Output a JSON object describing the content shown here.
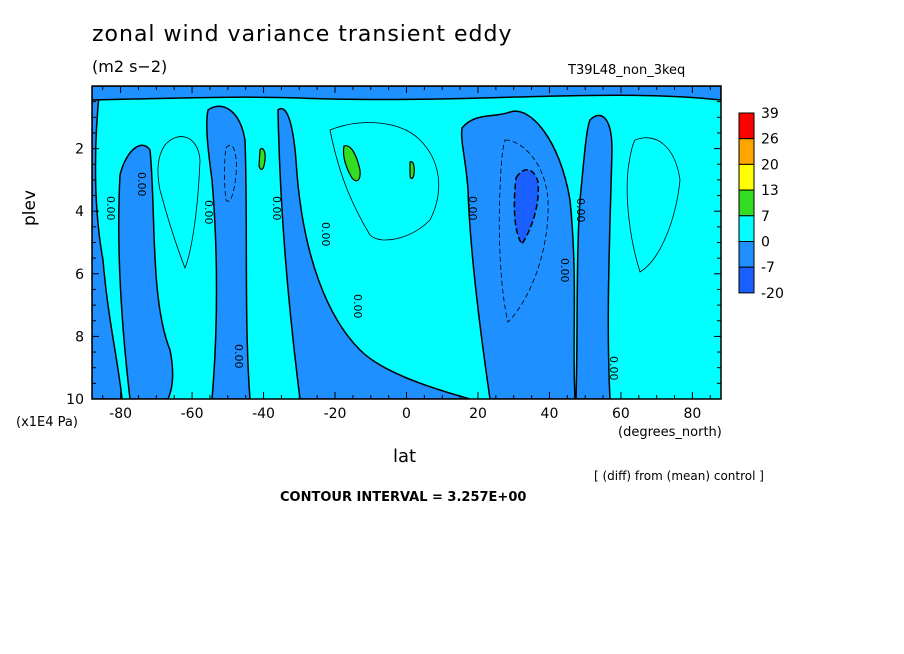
{
  "title": "zonal wind variance transient eddy",
  "units": "(m2 s−2)",
  "run_label": "T39L48_non_3keq",
  "pressure_unit": "(x1E4 Pa)",
  "x_unit": "(degrees_north)",
  "diff_note": "[ (diff) from (mean) control ]",
  "contour_interval": "CONTOUR INTERVAL = 3.257E+00",
  "zero_label": "0.00",
  "chart_data": {
    "type": "heatmap",
    "xlabel": "lat",
    "ylabel": "plev",
    "xlim": [
      -88,
      88
    ],
    "ylim": [
      10,
      0
    ],
    "x_ticks": [
      "-80",
      "-60",
      "-40",
      "-20",
      "0",
      "20",
      "40",
      "60",
      "80"
    ],
    "y_ticks": [
      "2",
      "4",
      "6",
      "8",
      "10"
    ],
    "colorbar": {
      "levels": [
        "39",
        "26",
        "20",
        "13",
        "7",
        "0",
        "-7",
        "-20"
      ],
      "colors": [
        "#ff0000",
        "#ffa500",
        "#ffff00",
        "#33dd22",
        "#00ffff",
        "#1e90ff",
        "#1a5fff"
      ]
    },
    "bands": [
      {
        "lat_min": -88,
        "lat_max": -84,
        "sign": "negative"
      },
      {
        "lat_min": -84,
        "lat_max": -78,
        "sign": "positive"
      },
      {
        "lat_min": -78,
        "lat_max": -70,
        "sign": "negative"
      },
      {
        "lat_min": -70,
        "lat_max": -56,
        "sign": "positive"
      },
      {
        "lat_min": -56,
        "lat_max": -46,
        "sign": "negative"
      },
      {
        "lat_min": -46,
        "lat_max": -38,
        "sign": "positive"
      },
      {
        "lat_min": -38,
        "lat_max": -22,
        "sign": "negative"
      },
      {
        "lat_min": -22,
        "lat_max": 20,
        "sign": "positive"
      },
      {
        "lat_min": 20,
        "lat_max": 46,
        "sign": "negative"
      },
      {
        "lat_min": 46,
        "lat_max": 56,
        "sign": "positive"
      },
      {
        "lat_min": 56,
        "lat_max": 88,
        "sign": "positive"
      }
    ],
    "features": [
      {
        "kind": "min",
        "lat": 33,
        "plev": 4,
        "level": "-20"
      },
      {
        "kind": "max",
        "lat": -16,
        "plev": 2.5,
        "level": "7"
      },
      {
        "kind": "max",
        "lat": -40,
        "plev": 2.4,
        "level": "7"
      },
      {
        "kind": "max",
        "lat": 2,
        "plev": 2.7,
        "level": "7"
      }
    ]
  }
}
